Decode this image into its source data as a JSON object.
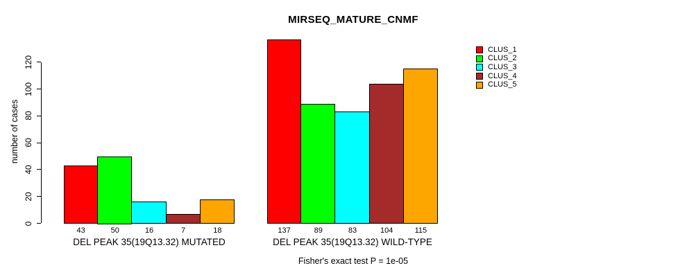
{
  "chart_data": {
    "type": "bar",
    "title": "MIRSEQ_MATURE_CNMF",
    "ylabel": "number of cases",
    "xlabel": "",
    "y_ticks": [
      0,
      20,
      40,
      60,
      80,
      100,
      120
    ],
    "ylim": [
      0,
      140
    ],
    "grid": false,
    "legend_position": "right-outside-top",
    "bar_value_labels": true,
    "categories": [
      "DEL PEAK 35(19Q13.32) MUTATED",
      "DEL PEAK 35(19Q13.32) WILD-TYPE"
    ],
    "series": [
      {
        "name": "CLUS_1",
        "color": "#FF0000",
        "values": [
          43,
          137
        ]
      },
      {
        "name": "CLUS_2",
        "color": "#00FF00",
        "values": [
          50,
          89
        ]
      },
      {
        "name": "CLUS_3",
        "color": "#00FFFF",
        "values": [
          16,
          83
        ]
      },
      {
        "name": "CLUS_4",
        "color": "#A52A2A",
        "values": [
          7,
          104
        ]
      },
      {
        "name": "CLUS_5",
        "color": "#FFA500",
        "values": [
          18,
          115
        ]
      }
    ],
    "annotation": "Fisher's exact test P = 1e-05"
  }
}
